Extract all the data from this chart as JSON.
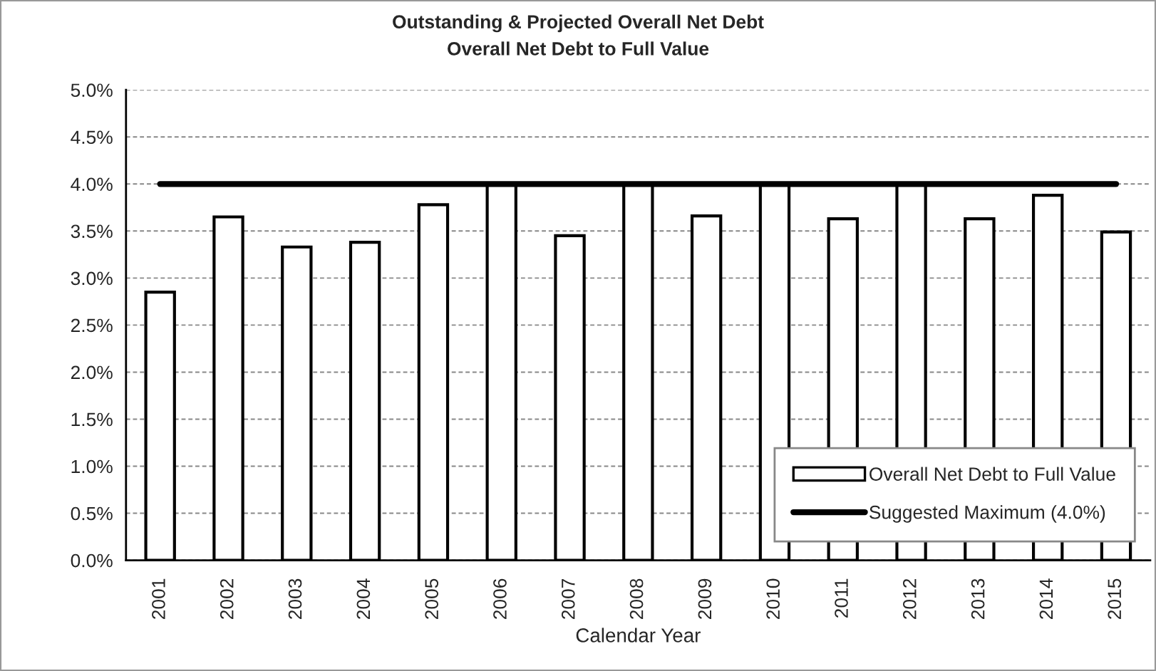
{
  "chart_data": {
    "type": "bar",
    "title": "Outstanding & Projected Overall Net Debt",
    "subtitle": "Overall Net Debt to Full Value",
    "xlabel": "Calendar Year",
    "categories": [
      "2001",
      "2002",
      "2003",
      "2004",
      "2005",
      "2006",
      "2007",
      "2008",
      "2009",
      "2010",
      "2011",
      "2012",
      "2013",
      "2014",
      "2015"
    ],
    "series": [
      {
        "name": "Overall Net Debt to Full Value",
        "color": "#ffffff",
        "values": [
          2.85,
          3.65,
          3.33,
          3.38,
          3.78,
          4.0,
          3.45,
          4.0,
          3.66,
          4.0,
          3.63,
          4.0,
          3.63,
          3.88,
          3.49
        ]
      },
      {
        "name": "Suggested Maximum (4.0%)",
        "type": "line",
        "color": "#000000",
        "values": [
          4.0,
          4.0,
          4.0,
          4.0,
          4.0,
          4.0,
          4.0,
          4.0,
          4.0,
          4.0,
          4.0,
          4.0,
          4.0,
          4.0,
          4.0
        ]
      }
    ],
    "ylim": [
      0,
      5
    ],
    "yticks": [
      {
        "value": 0,
        "label": "0.0%"
      },
      {
        "value": 0.5,
        "label": "0.5%"
      },
      {
        "value": 1,
        "label": "1.0%"
      },
      {
        "value": 1.5,
        "label": "1.5%"
      },
      {
        "value": 2,
        "label": "2.0%"
      },
      {
        "value": 2.5,
        "label": "2.5%"
      },
      {
        "value": 3,
        "label": "3.0%"
      },
      {
        "value": 3.5,
        "label": "3.5%"
      },
      {
        "value": 4,
        "label": "4.0%"
      },
      {
        "value": 4.5,
        "label": "4.5%"
      },
      {
        "value": 5,
        "label": "5.0%"
      }
    ],
    "grid": "y",
    "legend": "bottom right"
  }
}
